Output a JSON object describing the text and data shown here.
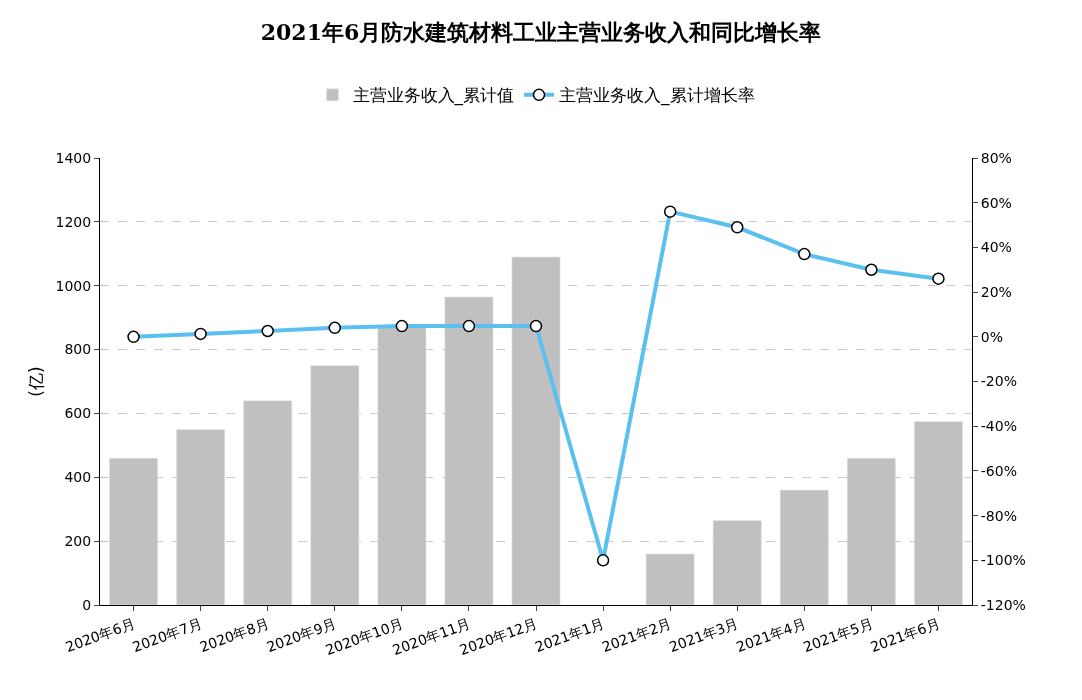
{
  "chart_data": {
    "type": "bar",
    "title": "2021年6月防水建筑材料工业主营业务收入和同比增长率",
    "ylabel": "(亿)",
    "categories": [
      "2020年6月",
      "2020年7月",
      "2020年8月",
      "2020年9月",
      "2020年10月",
      "2020年11月",
      "2020年12月",
      "2021年1月",
      "2021年2月",
      "2021年3月",
      "2021年4月",
      "2021年5月",
      "2021年6月"
    ],
    "series": [
      {
        "name": "主营业务收入_累计值",
        "color": "#c0c0c0",
        "values": [
          460,
          550,
          640,
          750,
          870,
          965,
          1090,
          null,
          160,
          265,
          360,
          460,
          575
        ]
      },
      {
        "name": "主营业务收入_累计增长率",
        "type": "line",
        "axis": "y2",
        "color": "#5bc0f0",
        "marker": "circle",
        "values": [
          0,
          1.3,
          2.6,
          4,
          4.8,
          4.8,
          4.8,
          -100,
          56,
          49,
          37,
          30,
          26
        ]
      }
    ],
    "ylim": [
      0,
      1400
    ],
    "yticks": [
      0,
      200,
      400,
      600,
      800,
      1000,
      1200,
      1400
    ],
    "y2lim": [
      -120,
      80
    ],
    "y2ticks": [
      {
        "value": -120,
        "label": "-120%"
      },
      {
        "value": -100,
        "label": "-100%"
      },
      {
        "value": -80,
        "label": "-80%"
      },
      {
        "value": -60,
        "label": "-60%"
      },
      {
        "value": -40,
        "label": "-40%"
      },
      {
        "value": -20,
        "label": "-20%"
      },
      {
        "value": 0,
        "label": "0%"
      },
      {
        "value": 20,
        "label": "20%"
      },
      {
        "value": 40,
        "label": "40%"
      },
      {
        "value": 60,
        "label": "60%"
      },
      {
        "value": 80,
        "label": "80%"
      }
    ],
    "grid": "y",
    "legend": "top"
  }
}
